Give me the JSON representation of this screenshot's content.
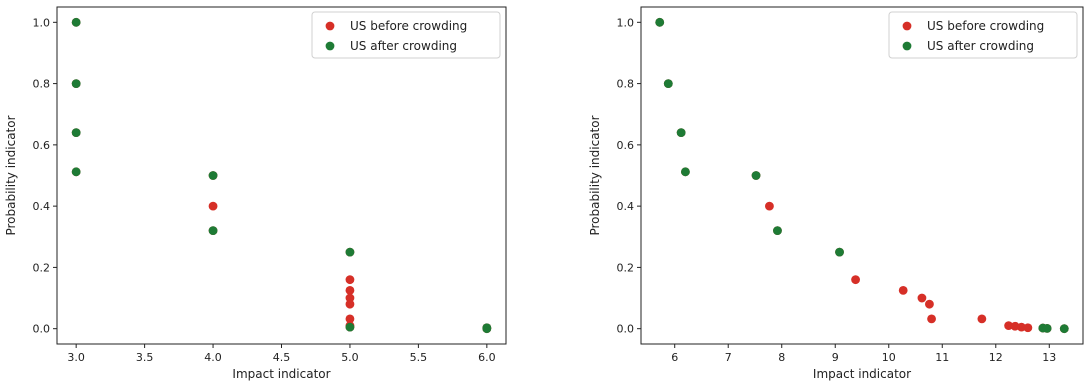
{
  "colors": {
    "before": "#d62f27",
    "after": "#1e7b35",
    "axis": "#222222"
  },
  "chart_data": [
    {
      "type": "scatter",
      "xlabel": "Impact indicator",
      "ylabel": "Probability indicator",
      "xlim": [
        2.86,
        6.14
      ],
      "ylim": [
        -0.05,
        1.05
      ],
      "x_ticks": [
        "3.0",
        "3.5",
        "4.0",
        "4.5",
        "5.0",
        "5.5",
        "6.0"
      ],
      "y_ticks": [
        "0.0",
        "0.2",
        "0.4",
        "0.6",
        "0.8",
        "1.0"
      ],
      "legend_position": "top-right",
      "series": [
        {
          "name": "US before crowding",
          "color": "before",
          "points": [
            [
              3,
              1.0
            ],
            [
              3,
              0.8
            ],
            [
              3,
              0.64
            ],
            [
              3,
              0.512
            ],
            [
              4,
              0.5
            ],
            [
              4,
              0.4
            ],
            [
              4,
              0.32
            ],
            [
              5,
              0.25
            ],
            [
              5,
              0.16
            ],
            [
              5,
              0.125
            ],
            [
              5,
              0.1
            ],
            [
              5,
              0.08
            ],
            [
              5,
              0.032
            ],
            [
              5,
              0.01
            ],
            [
              5,
              0.005
            ],
            [
              6,
              0.003
            ],
            [
              6,
              0.0
            ]
          ]
        },
        {
          "name": "US after crowding",
          "color": "after",
          "points": [
            [
              3,
              1.0
            ],
            [
              3,
              0.8
            ],
            [
              3,
              0.64
            ],
            [
              3,
              0.512
            ],
            [
              4,
              0.5
            ],
            [
              4,
              0.32
            ],
            [
              5,
              0.25
            ],
            [
              5,
              0.005
            ],
            [
              6,
              0.003
            ],
            [
              6,
              0.0
            ]
          ]
        }
      ]
    },
    {
      "type": "scatter",
      "xlabel": "Impact indicator",
      "ylabel": "Probability indicator",
      "xlim": [
        5.37,
        13.63
      ],
      "ylim": [
        -0.05,
        1.05
      ],
      "x_ticks": [
        "6",
        "7",
        "8",
        "9",
        "10",
        "11",
        "12",
        "13"
      ],
      "y_ticks": [
        "0.0",
        "0.2",
        "0.4",
        "0.6",
        "0.8",
        "1.0"
      ],
      "legend_position": "top-right",
      "series": [
        {
          "name": "US before crowding",
          "color": "before",
          "points": [
            [
              5.72,
              1.0
            ],
            [
              5.88,
              0.8
            ],
            [
              6.12,
              0.64
            ],
            [
              6.2,
              0.512
            ],
            [
              7.52,
              0.5
            ],
            [
              7.77,
              0.4
            ],
            [
              7.92,
              0.32
            ],
            [
              9.08,
              0.25
            ],
            [
              9.38,
              0.16
            ],
            [
              10.27,
              0.125
            ],
            [
              10.62,
              0.1
            ],
            [
              10.76,
              0.08
            ],
            [
              10.8,
              0.032
            ],
            [
              11.74,
              0.032
            ],
            [
              12.24,
              0.01
            ],
            [
              12.36,
              0.008
            ],
            [
              12.48,
              0.005
            ],
            [
              12.6,
              0.003
            ],
            [
              12.88,
              0.002
            ],
            [
              12.96,
              0.001
            ],
            [
              13.28,
              0.0
            ]
          ]
        },
        {
          "name": "US after crowding",
          "color": "after",
          "points": [
            [
              5.72,
              1.0
            ],
            [
              5.88,
              0.8
            ],
            [
              6.12,
              0.64
            ],
            [
              6.2,
              0.512
            ],
            [
              7.52,
              0.5
            ],
            [
              7.92,
              0.32
            ],
            [
              9.08,
              0.25
            ],
            [
              12.88,
              0.002
            ],
            [
              12.96,
              0.001
            ],
            [
              13.28,
              0.0
            ]
          ]
        }
      ]
    }
  ]
}
